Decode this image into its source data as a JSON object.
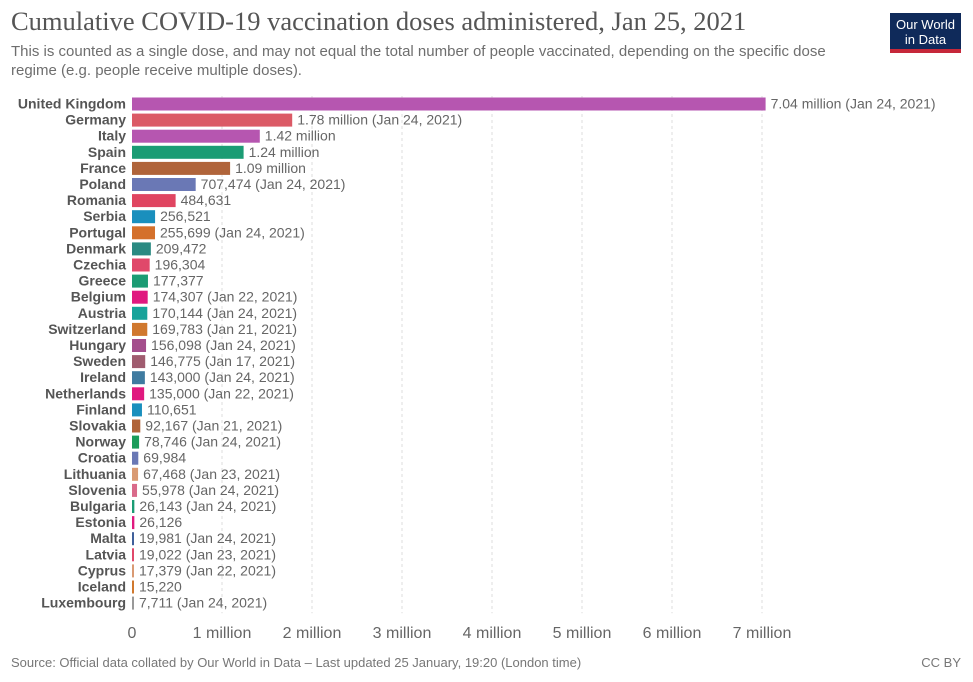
{
  "header": {
    "title": "Cumulative COVID-19 vaccination doses administered, Jan 25, 2021",
    "subtitle": "This is counted as a single dose, and may not equal the total number of people vaccinated, depending on the specific dose regime (e.g. people receive multiple doses).",
    "logo_line1": "Our World",
    "logo_line2": "in Data"
  },
  "footer": {
    "source": "Source: Official data collated by Our World in Data – Last updated 25 January, 19:20 (London time)",
    "license": "CC BY"
  },
  "colors": {
    "text": "#555555",
    "grid": "#dddddd",
    "logo_bg": "#0f2a5a",
    "logo_accent": "#c6283a"
  },
  "chart_data": {
    "type": "bar",
    "orientation": "horizontal",
    "title": "Cumulative COVID-19 vaccination doses administered, Jan 25, 2021",
    "xlabel": "",
    "ylabel": "",
    "xlim": [
      0,
      7000000
    ],
    "grid": true,
    "x_ticks": [
      {
        "value": 0,
        "label": "0"
      },
      {
        "value": 1000000,
        "label": "1 million"
      },
      {
        "value": 2000000,
        "label": "2 million"
      },
      {
        "value": 3000000,
        "label": "3 million"
      },
      {
        "value": 4000000,
        "label": "4 million"
      },
      {
        "value": 5000000,
        "label": "5 million"
      },
      {
        "value": 6000000,
        "label": "6 million"
      },
      {
        "value": 7000000,
        "label": "7 million"
      }
    ],
    "bars": [
      {
        "country": "United Kingdom",
        "value": 7040000,
        "label": "7.04 million (Jan 24, 2021)",
        "color": "#b656b0"
      },
      {
        "country": "Germany",
        "value": 1780000,
        "label": "1.78 million (Jan 24, 2021)",
        "color": "#db5a66"
      },
      {
        "country": "Italy",
        "value": 1420000,
        "label": "1.42 million",
        "color": "#b656b0"
      },
      {
        "country": "Spain",
        "value": 1240000,
        "label": "1.24 million",
        "color": "#1b9c74"
      },
      {
        "country": "France",
        "value": 1090000,
        "label": "1.09 million",
        "color": "#b0643a"
      },
      {
        "country": "Poland",
        "value": 707474,
        "label": "707,474 (Jan 24, 2021)",
        "color": "#6a78b5"
      },
      {
        "country": "Romania",
        "value": 484631,
        "label": "484,631",
        "color": "#e04561"
      },
      {
        "country": "Serbia",
        "value": 256521,
        "label": "256,521",
        "color": "#1a8fbd"
      },
      {
        "country": "Portugal",
        "value": 255699,
        "label": "255,699 (Jan 24, 2021)",
        "color": "#d4702b"
      },
      {
        "country": "Denmark",
        "value": 209472,
        "label": "209,472",
        "color": "#2a8a82"
      },
      {
        "country": "Czechia",
        "value": 196304,
        "label": "196,304",
        "color": "#e0486a"
      },
      {
        "country": "Greece",
        "value": 177377,
        "label": "177,377",
        "color": "#1b9c74"
      },
      {
        "country": "Belgium",
        "value": 174307,
        "label": "174,307 (Jan 22, 2021)",
        "color": "#e0197f"
      },
      {
        "country": "Austria",
        "value": 170144,
        "label": "170,144 (Jan 24, 2021)",
        "color": "#17a39a"
      },
      {
        "country": "Switzerland",
        "value": 169783,
        "label": "169,783 (Jan 21, 2021)",
        "color": "#d0782e"
      },
      {
        "country": "Hungary",
        "value": 156098,
        "label": "156,098 (Jan 24, 2021)",
        "color": "#a44e8c"
      },
      {
        "country": "Sweden",
        "value": 146775,
        "label": "146,775 (Jan 17, 2021)",
        "color": "#a05c6f"
      },
      {
        "country": "Ireland",
        "value": 143000,
        "label": "143,000 (Jan 24, 2021)",
        "color": "#3f7ba0"
      },
      {
        "country": "Netherlands",
        "value": 135000,
        "label": "135,000 (Jan 22, 2021)",
        "color": "#e0197f"
      },
      {
        "country": "Finland",
        "value": 110651,
        "label": "110,651",
        "color": "#1a8fbd"
      },
      {
        "country": "Slovakia",
        "value": 92167,
        "label": "92,167 (Jan 21, 2021)",
        "color": "#b0643a"
      },
      {
        "country": "Norway",
        "value": 78746,
        "label": "78,746 (Jan 24, 2021)",
        "color": "#1b9c5a"
      },
      {
        "country": "Croatia",
        "value": 69984,
        "label": "69,984",
        "color": "#6a78b5"
      },
      {
        "country": "Lithuania",
        "value": 67468,
        "label": "67,468 (Jan 23, 2021)",
        "color": "#d99a73"
      },
      {
        "country": "Slovenia",
        "value": 55978,
        "label": "55,978 (Jan 24, 2021)",
        "color": "#d96a8a"
      },
      {
        "country": "Bulgaria",
        "value": 26143,
        "label": "26,143 (Jan 24, 2021)",
        "color": "#1b9c74"
      },
      {
        "country": "Estonia",
        "value": 26126,
        "label": "26,126",
        "color": "#e0197f"
      },
      {
        "country": "Malta",
        "value": 19981,
        "label": "19,981 (Jan 24, 2021)",
        "color": "#3f5f9a"
      },
      {
        "country": "Latvia",
        "value": 19022,
        "label": "19,022 (Jan 23, 2021)",
        "color": "#e0486a"
      },
      {
        "country": "Cyprus",
        "value": 17379,
        "label": "17,379 (Jan 22, 2021)",
        "color": "#d99a73"
      },
      {
        "country": "Iceland",
        "value": 15220,
        "label": "15,220",
        "color": "#d0782e"
      },
      {
        "country": "Luxembourg",
        "value": 7711,
        "label": "7,711 (Jan 24, 2021)",
        "color": "#999999"
      }
    ]
  }
}
